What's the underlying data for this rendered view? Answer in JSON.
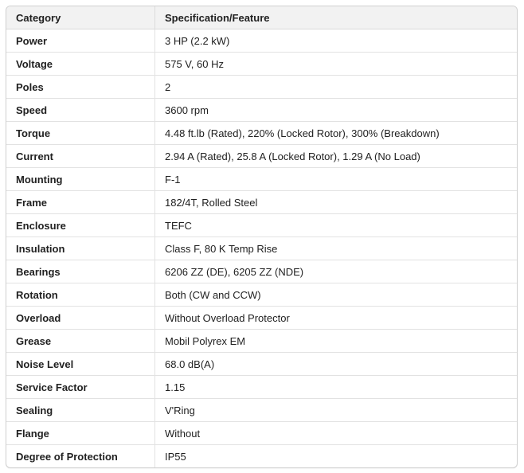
{
  "colors": {
    "header_bg": "#f2f2f2",
    "outer_border": "#cfcfcf",
    "row_divider": "#e2e2e2",
    "text": "#212121"
  },
  "table": {
    "headers": [
      "Category",
      "Specification/Feature"
    ],
    "rows": [
      {
        "category": "Power",
        "spec": "3 HP (2.2 kW)"
      },
      {
        "category": "Voltage",
        "spec": "575 V, 60 Hz"
      },
      {
        "category": "Poles",
        "spec": "2"
      },
      {
        "category": "Speed",
        "spec": "3600 rpm"
      },
      {
        "category": "Torque",
        "spec": "4.48 ft.lb (Rated), 220% (Locked Rotor), 300% (Breakdown)"
      },
      {
        "category": "Current",
        "spec": "2.94 A (Rated), 25.8 A (Locked Rotor), 1.29 A (No Load)"
      },
      {
        "category": "Mounting",
        "spec": "F-1"
      },
      {
        "category": "Frame",
        "spec": "182/4T, Rolled Steel"
      },
      {
        "category": "Enclosure",
        "spec": "TEFC"
      },
      {
        "category": "Insulation",
        "spec": "Class F, 80 K Temp Rise"
      },
      {
        "category": "Bearings",
        "spec": "6206 ZZ (DE), 6205 ZZ (NDE)"
      },
      {
        "category": "Rotation",
        "spec": "Both (CW and CCW)"
      },
      {
        "category": "Overload",
        "spec": "Without Overload Protector"
      },
      {
        "category": "Grease",
        "spec": "Mobil Polyrex EM"
      },
      {
        "category": "Noise Level",
        "spec": "68.0 dB(A)"
      },
      {
        "category": "Service Factor",
        "spec": "1.15"
      },
      {
        "category": "Sealing",
        "spec": "V'Ring"
      },
      {
        "category": "Flange",
        "spec": "Without"
      },
      {
        "category": "Degree of Protection",
        "spec": "IP55"
      }
    ]
  }
}
